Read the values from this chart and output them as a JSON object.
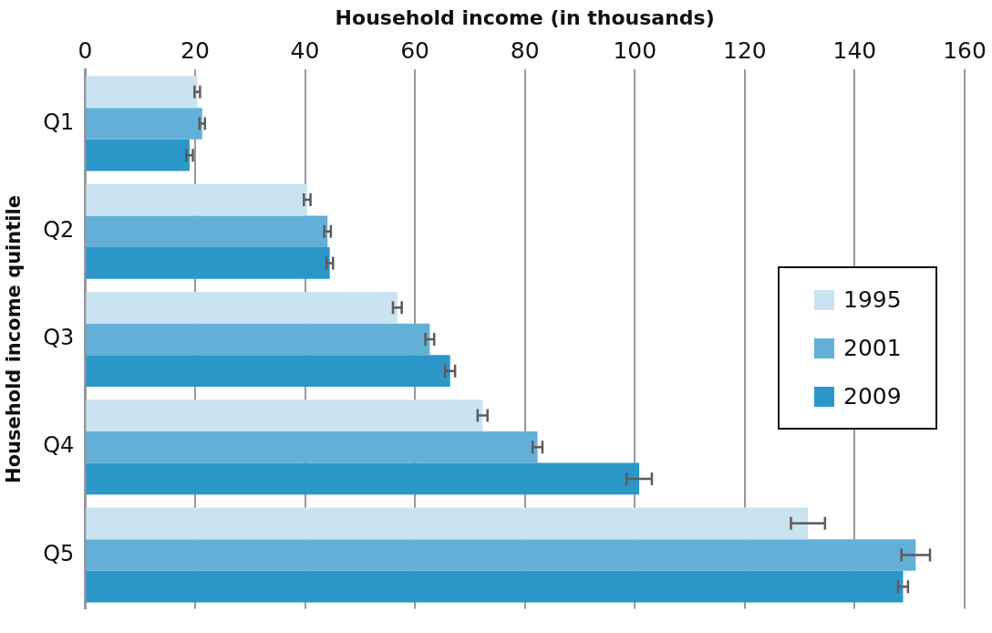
{
  "chart_data": {
    "type": "bar",
    "orientation": "horizontal",
    "xlabel": "Household income (in thousands)",
    "ylabel": "Household income quintile",
    "categories": [
      "Q1",
      "Q2",
      "Q3",
      "Q4",
      "Q5"
    ],
    "series": [
      {
        "name": "1995",
        "color": "#c9e3f0",
        "values": [
          20.4,
          40.4,
          56.8,
          72.3,
          131.5
        ],
        "errors": [
          0.5,
          0.6,
          0.8,
          0.9,
          3.1
        ]
      },
      {
        "name": "2001",
        "color": "#62b0d7",
        "values": [
          21.3,
          44.1,
          62.7,
          82.3,
          151.1
        ],
        "errors": [
          0.5,
          0.6,
          0.8,
          0.9,
          2.6
        ]
      },
      {
        "name": "2009",
        "color": "#2b97c8",
        "values": [
          19.0,
          44.5,
          66.4,
          100.8,
          148.8
        ],
        "errors": [
          0.6,
          0.6,
          0.9,
          2.3,
          0.9
        ]
      }
    ],
    "xlim": [
      0,
      160
    ],
    "xticks": [
      0,
      20,
      40,
      60,
      80,
      100,
      120,
      140,
      160
    ],
    "grid": "x",
    "legend": "right"
  }
}
